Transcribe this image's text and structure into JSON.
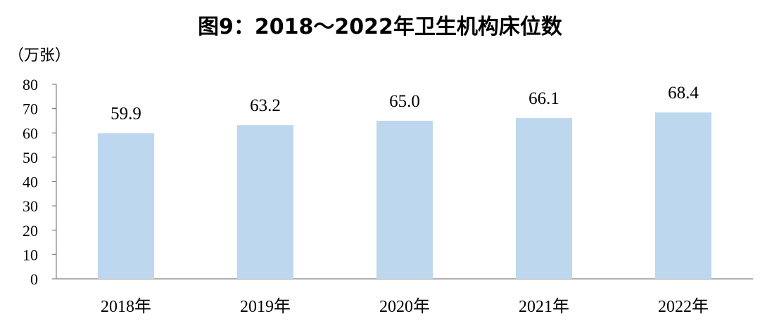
{
  "chart_data": {
    "type": "bar",
    "title": "图9：2018～2022年卫生机构床位数",
    "unit_label": "（万张）",
    "categories": [
      "2018年",
      "2019年",
      "2020年",
      "2021年",
      "2022年"
    ],
    "values": [
      59.9,
      63.2,
      65.0,
      66.1,
      68.4
    ],
    "value_labels": [
      "59.9",
      "63.2",
      "65.0",
      "66.1",
      "68.4"
    ],
    "ylim": [
      0,
      80
    ],
    "yticks": [
      "0",
      "10",
      "20",
      "30",
      "40",
      "50",
      "60",
      "70",
      "80"
    ],
    "bar_color": "#bdd7ee",
    "grid": false,
    "legend": "none"
  }
}
